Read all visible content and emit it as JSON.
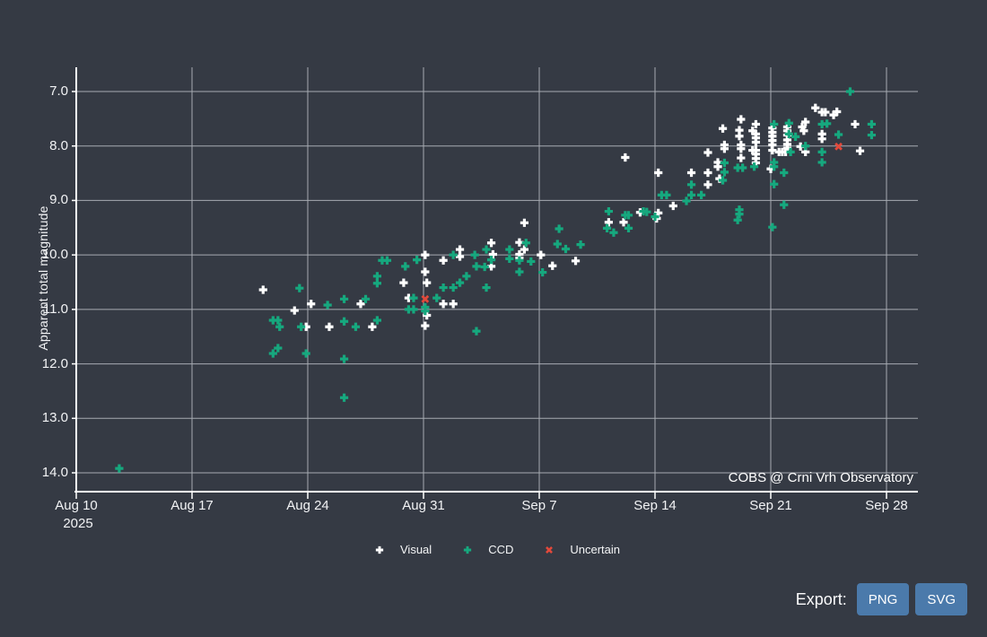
{
  "chart_data": {
    "type": "scatter",
    "title": "",
    "x": {
      "unit": "days since Aug 10, 2025",
      "tick_days": [
        0,
        7,
        14,
        21,
        28,
        35,
        42,
        49
      ],
      "tick_labels": [
        "Aug 10",
        "Aug 17",
        "Aug 24",
        "Aug 31",
        "Sep 7",
        "Sep 14",
        "Sep 21",
        "Sep 28"
      ],
      "year_label": "2025"
    },
    "y": {
      "label": "Apparent total magnitude",
      "ticks": [
        7,
        8,
        9,
        10,
        11,
        12,
        13,
        14
      ],
      "tick_labels": [
        "7.0",
        "8.0",
        "9.0",
        "10.0",
        "11.0",
        "12.0",
        "13.0",
        "14.0"
      ],
      "inverted": true,
      "range": [
        6.56,
        14.35
      ]
    },
    "annotation": "COBS @ Crni Vrh Observatory",
    "grid": true,
    "legend_position": "bottom-center",
    "legend": [
      {
        "label": "Visual",
        "marker": "plus",
        "color": "#ffffff"
      },
      {
        "label": "CCD",
        "marker": "plus",
        "color": "#16a87e"
      },
      {
        "label": "Uncertain",
        "marker": "x",
        "color": "#e2493b"
      }
    ],
    "series": [
      {
        "name": "Visual",
        "marker": "plus",
        "color": "#ffffff",
        "points": [
          [
            11.3,
            10.64
          ],
          [
            13.2,
            11.02
          ],
          [
            13.9,
            11.32
          ],
          [
            14.2,
            10.9
          ],
          [
            15.3,
            11.32
          ],
          [
            17.2,
            10.9
          ],
          [
            17.9,
            11.32
          ],
          [
            19.8,
            10.51
          ],
          [
            20.1,
            10.79
          ],
          [
            21.1,
            10.0
          ],
          [
            21.1,
            10.31
          ],
          [
            21.1,
            11.3
          ],
          [
            21.2,
            10.51
          ],
          [
            21.2,
            11.11
          ],
          [
            22.2,
            10.1
          ],
          [
            22.2,
            10.9
          ],
          [
            22.8,
            10.9
          ],
          [
            23.2,
            9.9
          ],
          [
            23.2,
            10.03
          ],
          [
            25.1,
            9.78
          ],
          [
            25.1,
            10.21
          ],
          [
            25.2,
            9.99
          ],
          [
            26.8,
            9.77
          ],
          [
            26.8,
            9.99
          ],
          [
            26.8,
            10.06
          ],
          [
            27.1,
            9.41
          ],
          [
            27.1,
            9.9
          ],
          [
            28.1,
            10.0
          ],
          [
            28.8,
            10.2
          ],
          [
            30.2,
            10.11
          ],
          [
            32.2,
            9.4
          ],
          [
            33.1,
            9.4
          ],
          [
            33.2,
            8.21
          ],
          [
            34.1,
            9.22
          ],
          [
            35.1,
            9.33
          ],
          [
            35.2,
            8.49
          ],
          [
            35.2,
            9.23
          ],
          [
            36.1,
            9.1
          ],
          [
            37.2,
            8.49
          ],
          [
            38.2,
            8.12
          ],
          [
            38.2,
            8.49
          ],
          [
            38.2,
            8.71
          ],
          [
            38.8,
            8.3
          ],
          [
            38.8,
            8.38
          ],
          [
            38.9,
            8.6
          ],
          [
            39.1,
            7.68
          ],
          [
            39.2,
            7.98
          ],
          [
            39.2,
            8.05
          ],
          [
            40.1,
            7.71
          ],
          [
            40.1,
            7.82
          ],
          [
            40.2,
            7.51
          ],
          [
            40.2,
            7.98
          ],
          [
            40.2,
            8.05
          ],
          [
            40.2,
            8.22
          ],
          [
            40.9,
            7.72
          ],
          [
            40.9,
            8.08
          ],
          [
            41.1,
            7.6
          ],
          [
            41.1,
            7.78
          ],
          [
            41.1,
            7.85
          ],
          [
            41.1,
            7.93
          ],
          [
            41.1,
            8.08
          ],
          [
            41.1,
            8.15
          ],
          [
            41.1,
            8.23
          ],
          [
            41.1,
            8.31
          ],
          [
            42.0,
            8.42
          ],
          [
            42.1,
            7.67
          ],
          [
            42.1,
            7.75
          ],
          [
            42.1,
            7.82
          ],
          [
            42.1,
            7.9
          ],
          [
            42.1,
            7.98
          ],
          [
            42.1,
            8.08
          ],
          [
            42.5,
            8.11
          ],
          [
            42.7,
            8.11
          ],
          [
            42.9,
            8.11
          ],
          [
            43.0,
            7.65
          ],
          [
            43.0,
            7.72
          ],
          [
            43.0,
            7.8
          ],
          [
            43.0,
            7.89
          ],
          [
            43.0,
            7.97
          ],
          [
            43.0,
            8.04
          ],
          [
            43.8,
            8.01
          ],
          [
            43.9,
            7.65
          ],
          [
            44.0,
            7.72
          ],
          [
            44.1,
            7.56
          ],
          [
            44.1,
            8.11
          ],
          [
            44.7,
            7.3
          ],
          [
            45.1,
            7.38
          ],
          [
            45.1,
            7.78
          ],
          [
            45.1,
            7.87
          ],
          [
            45.3,
            7.38
          ],
          [
            45.8,
            7.43
          ],
          [
            46.0,
            7.37
          ],
          [
            47.1,
            7.6
          ],
          [
            47.4,
            8.09
          ]
        ]
      },
      {
        "name": "CCD",
        "marker": "plus",
        "color": "#16a87e",
        "points": [
          [
            2.6,
            13.92
          ],
          [
            11.9,
            11.2
          ],
          [
            11.9,
            11.81
          ],
          [
            12.2,
            11.2
          ],
          [
            12.2,
            11.71
          ],
          [
            12.3,
            11.32
          ],
          [
            13.5,
            10.61
          ],
          [
            13.6,
            11.32
          ],
          [
            13.9,
            11.81
          ],
          [
            15.2,
            10.92
          ],
          [
            16.2,
            10.81
          ],
          [
            16.2,
            11.22
          ],
          [
            16.2,
            11.91
          ],
          [
            16.2,
            12.62
          ],
          [
            16.9,
            11.32
          ],
          [
            17.5,
            10.81
          ],
          [
            18.2,
            10.39
          ],
          [
            18.2,
            10.52
          ],
          [
            18.2,
            11.2
          ],
          [
            18.5,
            10.1
          ],
          [
            18.8,
            10.1
          ],
          [
            19.9,
            10.21
          ],
          [
            20.1,
            11.0
          ],
          [
            20.4,
            10.79
          ],
          [
            20.4,
            11.0
          ],
          [
            20.6,
            10.09
          ],
          [
            21.1,
            10.96
          ],
          [
            21.1,
            11.03
          ],
          [
            21.8,
            10.79
          ],
          [
            22.2,
            10.6
          ],
          [
            22.8,
            10.0
          ],
          [
            22.8,
            10.6
          ],
          [
            23.2,
            10.51
          ],
          [
            23.6,
            10.39
          ],
          [
            24.1,
            10.0
          ],
          [
            24.2,
            10.21
          ],
          [
            24.2,
            11.4
          ],
          [
            24.7,
            10.22
          ],
          [
            24.8,
            9.9
          ],
          [
            24.8,
            10.6
          ],
          [
            25.1,
            10.09
          ],
          [
            26.2,
            9.9
          ],
          [
            26.2,
            10.07
          ],
          [
            26.8,
            10.1
          ],
          [
            26.8,
            10.31
          ],
          [
            27.2,
            9.78
          ],
          [
            27.5,
            10.12
          ],
          [
            28.2,
            10.32
          ],
          [
            29.1,
            9.8
          ],
          [
            29.2,
            9.52
          ],
          [
            29.6,
            9.89
          ],
          [
            30.5,
            9.81
          ],
          [
            32.1,
            9.51
          ],
          [
            32.2,
            9.2
          ],
          [
            32.5,
            9.59
          ],
          [
            33.2,
            9.27
          ],
          [
            33.4,
            9.27
          ],
          [
            33.4,
            9.51
          ],
          [
            34.3,
            9.2
          ],
          [
            34.5,
            9.21
          ],
          [
            35.0,
            9.3
          ],
          [
            35.4,
            8.9
          ],
          [
            35.7,
            8.9
          ],
          [
            36.9,
            9.01
          ],
          [
            37.2,
            8.71
          ],
          [
            37.2,
            8.9
          ],
          [
            37.8,
            8.9
          ],
          [
            39.1,
            8.63
          ],
          [
            39.2,
            8.31
          ],
          [
            39.2,
            8.48
          ],
          [
            40.0,
            8.4
          ],
          [
            40.0,
            9.36
          ],
          [
            40.1,
            9.17
          ],
          [
            40.1,
            9.25
          ],
          [
            40.3,
            8.4
          ],
          [
            41.0,
            8.38
          ],
          [
            42.1,
            9.49
          ],
          [
            42.2,
            7.6
          ],
          [
            42.2,
            8.3
          ],
          [
            42.2,
            8.38
          ],
          [
            42.2,
            8.7
          ],
          [
            42.8,
            8.49
          ],
          [
            42.8,
            9.08
          ],
          [
            43.1,
            7.58
          ],
          [
            43.1,
            7.78
          ],
          [
            43.2,
            8.11
          ],
          [
            43.5,
            7.83
          ],
          [
            44.1,
            8.0
          ],
          [
            45.1,
            7.6
          ],
          [
            45.1,
            8.11
          ],
          [
            45.1,
            8.3
          ],
          [
            45.4,
            7.59
          ],
          [
            46.1,
            7.79
          ],
          [
            46.8,
            7.0
          ],
          [
            48.1,
            7.6
          ],
          [
            48.1,
            7.8
          ]
        ]
      },
      {
        "name": "Uncertain",
        "marker": "x",
        "color": "#e2493b",
        "points": [
          [
            21.1,
            10.81
          ],
          [
            46.1,
            8.01
          ]
        ]
      }
    ]
  },
  "colors": {
    "background": "#353a44",
    "gridline": "#a7abb2",
    "axis": "#ffffff",
    "button": "#4b7aab"
  },
  "export": {
    "label": "Export:",
    "buttons": [
      "PNG",
      "SVG"
    ]
  }
}
